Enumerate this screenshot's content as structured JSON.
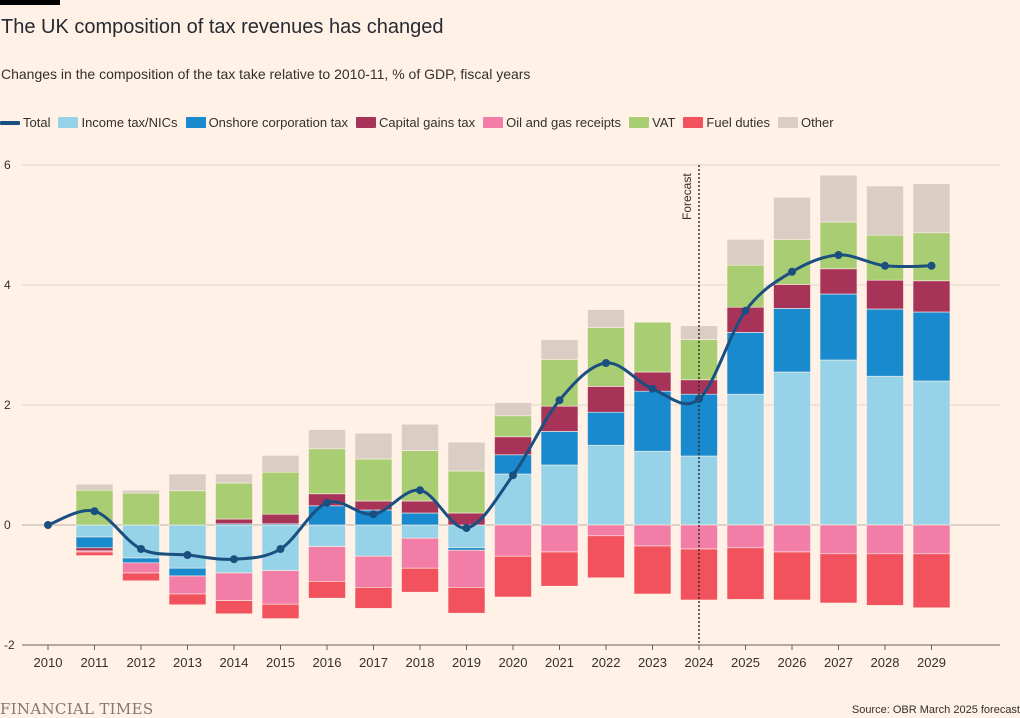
{
  "header": {
    "title": "The UK composition of tax revenues has changed",
    "subtitle": "Changes in the composition of the tax take relative to 2010-11, % of GDP, fiscal years"
  },
  "footer": {
    "logo": "FINANCIAL TIMES",
    "source": "Source: OBR March 2025 forecast"
  },
  "chart_data": {
    "type": "bar",
    "stacked": true,
    "categories": [
      "2010",
      "2011",
      "2012",
      "2013",
      "2014",
      "2015",
      "2016",
      "2017",
      "2018",
      "2019",
      "2020",
      "2021",
      "2022",
      "2023",
      "2024",
      "2025",
      "2026",
      "2027",
      "2028",
      "2029"
    ],
    "ylim": [
      -2,
      6
    ],
    "yticks": [
      -2,
      0,
      2,
      4,
      6
    ],
    "grid": true,
    "legend_position": "top",
    "annotation": {
      "text": "Forecast",
      "x": "2024",
      "style": "dotted vertical line"
    },
    "series": [
      {
        "name": "Income tax/NICs",
        "color": "#96d2e8",
        "values": [
          0,
          -0.2,
          -0.55,
          -0.72,
          -0.8,
          -0.76,
          -0.36,
          -0.52,
          -0.22,
          -0.38,
          0.85,
          1.0,
          1.33,
          1.23,
          1.15,
          2.18,
          2.55,
          2.75,
          2.48,
          2.4
        ]
      },
      {
        "name": "Onshore corporation tax",
        "color": "#1a8ace",
        "values": [
          0,
          -0.18,
          -0.08,
          -0.13,
          0.02,
          0.02,
          0.32,
          0.25,
          0.2,
          -0.04,
          0.32,
          0.56,
          0.55,
          1.0,
          1.03,
          1.03,
          1.06,
          1.1,
          1.12,
          1.15
        ]
      },
      {
        "name": "Capital gains tax",
        "color": "#a83358",
        "values": [
          0,
          -0.05,
          0,
          0,
          0.08,
          0.16,
          0.2,
          0.15,
          0.2,
          0.2,
          0.3,
          0.42,
          0.43,
          0.32,
          0.24,
          0.42,
          0.4,
          0.42,
          0.48,
          0.52
        ]
      },
      {
        "name": "Oil and gas receipts",
        "color": "#f27ea8",
        "values": [
          0,
          -0.02,
          -0.17,
          -0.3,
          -0.46,
          -0.56,
          -0.58,
          -0.52,
          -0.5,
          -0.62,
          -0.52,
          -0.45,
          -0.18,
          -0.35,
          -0.4,
          -0.38,
          -0.45,
          -0.48,
          -0.48,
          -0.48
        ]
      },
      {
        "name": "VAT",
        "color": "#a9cd73",
        "values": [
          0,
          0.58,
          0.53,
          0.57,
          0.6,
          0.7,
          0.75,
          0.7,
          0.84,
          0.7,
          0.35,
          0.78,
          0.98,
          0.83,
          0.67,
          0.7,
          0.75,
          0.78,
          0.75,
          0.8
        ]
      },
      {
        "name": "Fuel duties",
        "color": "#f1525e",
        "values": [
          0,
          -0.06,
          -0.13,
          -0.18,
          -0.22,
          -0.24,
          -0.28,
          -0.35,
          -0.4,
          -0.43,
          -0.68,
          -0.57,
          -0.7,
          -0.8,
          -0.85,
          -0.86,
          -0.8,
          -0.82,
          -0.86,
          -0.9
        ]
      },
      {
        "name": "Other",
        "color": "#d9cdc4",
        "values": [
          0,
          0.1,
          0.05,
          0.28,
          0.15,
          0.28,
          0.32,
          0.43,
          0.44,
          0.48,
          0.22,
          0.33,
          0.3,
          0,
          0.23,
          0.43,
          0.7,
          0.78,
          0.82,
          0.82
        ]
      }
    ],
    "total": {
      "name": "Total",
      "color": "#1b4f7f",
      "values": [
        0,
        0.23,
        -0.4,
        -0.5,
        -0.57,
        -0.4,
        0.37,
        0.18,
        0.58,
        -0.05,
        0.83,
        2.08,
        2.7,
        2.27,
        2.1,
        3.57,
        4.22,
        4.5,
        4.32,
        4.32
      ]
    }
  }
}
